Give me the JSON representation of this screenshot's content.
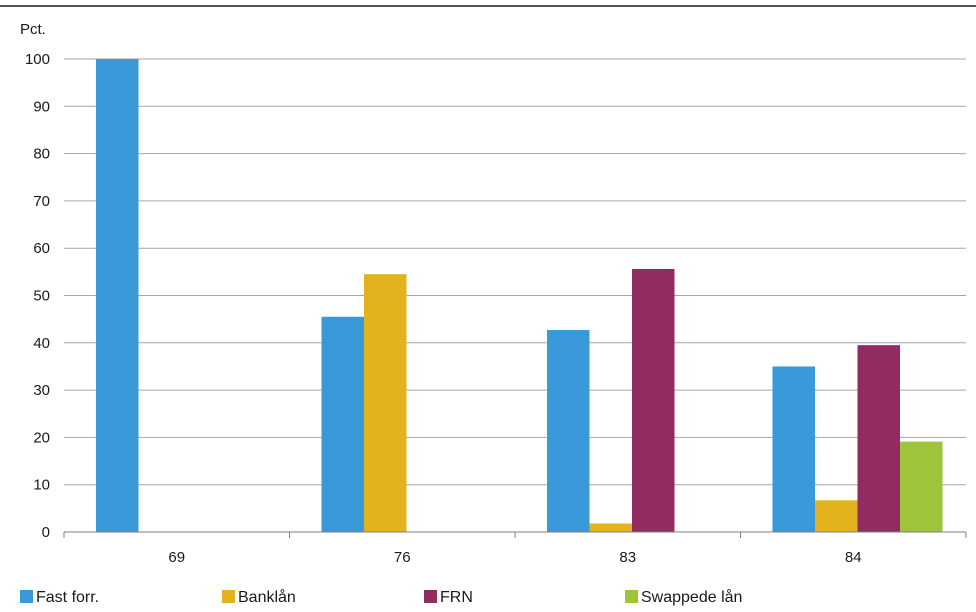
{
  "chart_data": {
    "type": "bar",
    "unit_label": "Pct.",
    "categories": [
      "69",
      "76",
      "83",
      "84"
    ],
    "ylim": [
      0,
      100
    ],
    "yticks": [
      0,
      10,
      20,
      30,
      40,
      50,
      60,
      70,
      80,
      90,
      100
    ],
    "grid": true,
    "legend_position": "bottom-left",
    "series": [
      {
        "name": "Fast forr.",
        "color": "#3a9ad9",
        "values": [
          100,
          45.5,
          42.7,
          35
        ]
      },
      {
        "name": "Banklån",
        "color": "#e2b21f",
        "values": [
          0,
          54.5,
          1.8,
          6.7
        ]
      },
      {
        "name": "FRN",
        "color": "#922b60",
        "values": [
          0,
          0,
          55.6,
          39.5
        ]
      },
      {
        "name": "Swappede lån",
        "color": "#9dc43a",
        "values": [
          0,
          0,
          0,
          19.1
        ]
      }
    ]
  }
}
